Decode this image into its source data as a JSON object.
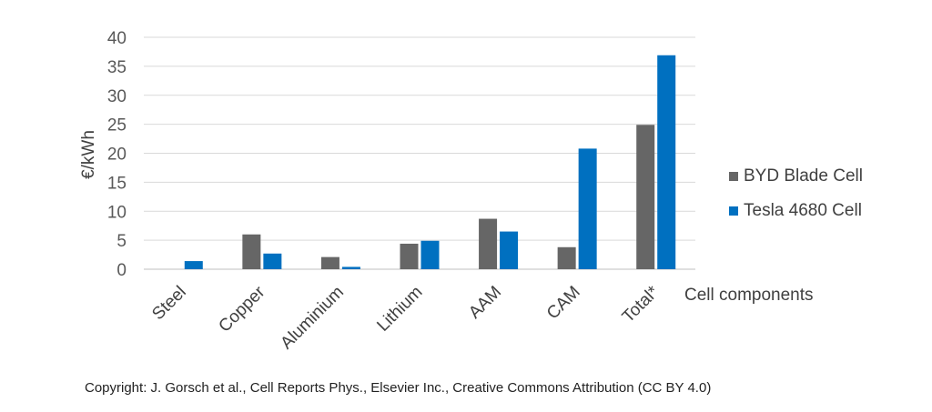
{
  "chart_data": {
    "type": "bar",
    "categories": [
      "Steel",
      "Copper",
      "Aluminium",
      "Lithium",
      "AAM",
      "CAM",
      "Total*"
    ],
    "series": [
      {
        "name": "BYD Blade Cell",
        "values": [
          0,
          6.0,
          2.1,
          4.4,
          8.7,
          3.8,
          24.9
        ],
        "color": "#666666"
      },
      {
        "name": "Tesla 4680 Cell",
        "values": [
          1.4,
          2.7,
          0.4,
          4.9,
          6.5,
          20.8,
          36.9
        ],
        "color": "#0070C0"
      }
    ],
    "ylabel": "€/kWh",
    "xlabel": "Cell components",
    "ylim": [
      0,
      40
    ],
    "yticks": [
      0,
      5,
      10,
      15,
      20,
      25,
      30,
      35,
      40
    ],
    "grid": true,
    "legend_position": "right"
  },
  "footer": {
    "copyright": "Copyright: J. Gorsch et al., Cell Reports Phys., Elsevier Inc., Creative Commons Attribution (CC BY 4.0)"
  }
}
